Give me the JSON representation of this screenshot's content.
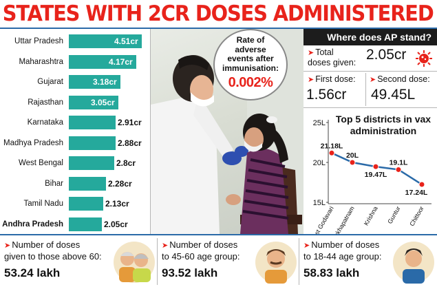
{
  "title": "STATES WITH 2CR DOSES ADMINISTERED",
  "chart_data": [
    {
      "type": "bar",
      "orientation": "horizontal",
      "categories": [
        "Uttar Pradesh",
        "Maharashtra",
        "Gujarat",
        "Rajasthan",
        "Karnataka",
        "Madhya Pradesh",
        "West Bengal",
        "Bihar",
        "Tamil Nadu",
        "Andhra Pradesh"
      ],
      "values": [
        4.51,
        4.17,
        3.18,
        3.05,
        2.91,
        2.88,
        2.8,
        2.28,
        2.13,
        2.05
      ],
      "value_labels": [
        "4.51cr",
        "4.17cr",
        "3.18cr",
        "3.05cr",
        "2.91cr",
        "2.88cr",
        "2.8cr",
        "2.28cr",
        "2.13cr",
        "2.05cr"
      ],
      "highlight": "Andhra Pradesh",
      "bar_color": "#25a99c",
      "grid": false
    },
    {
      "type": "line",
      "title": "Top 5 districts in vax administration",
      "categories": [
        "East Godavari",
        "Visakhapatnam",
        "Krishna",
        "Guntur",
        "Chittoor"
      ],
      "values": [
        21.18,
        20,
        19.47,
        19.1,
        17.24
      ],
      "value_labels": [
        "21.18L",
        "20L",
        "19.47L",
        "19.1L",
        "17.24L"
      ],
      "yticks": [
        "25L",
        "20L",
        "15L"
      ],
      "ytick_values": [
        25,
        20,
        15
      ],
      "ylim": [
        15,
        25
      ],
      "line_color": "#2a6aa8",
      "marker_color": "#e8231b",
      "grid": false
    }
  ],
  "bubble": {
    "text": [
      "Rate of",
      "adverse",
      "events after",
      "immunisation:"
    ],
    "value": "0.002%"
  },
  "ap": {
    "header": "Where does AP stand?",
    "total_label": [
      "Total",
      "doses given:"
    ],
    "total_value": "2.05cr",
    "first_label": "First dose:",
    "first_value": "1.56cr",
    "second_label": "Second dose:",
    "second_value": "49.45L",
    "arrow": "➤"
  },
  "bottom": [
    {
      "label": [
        "Number of doses",
        "given to those above 60:"
      ],
      "value": "53.24 lakh"
    },
    {
      "label": [
        "Number of doses",
        "to 45-60 age group:"
      ],
      "value": "93.52 lakh"
    },
    {
      "label": [
        "Number of doses",
        "to 18-44 age group:"
      ],
      "value": "58.83 lakh"
    }
  ],
  "colors": {
    "accent": "#e8231b",
    "bar": "#25a99c",
    "line": "#2a6aa8",
    "header": "#1c1c1c"
  }
}
